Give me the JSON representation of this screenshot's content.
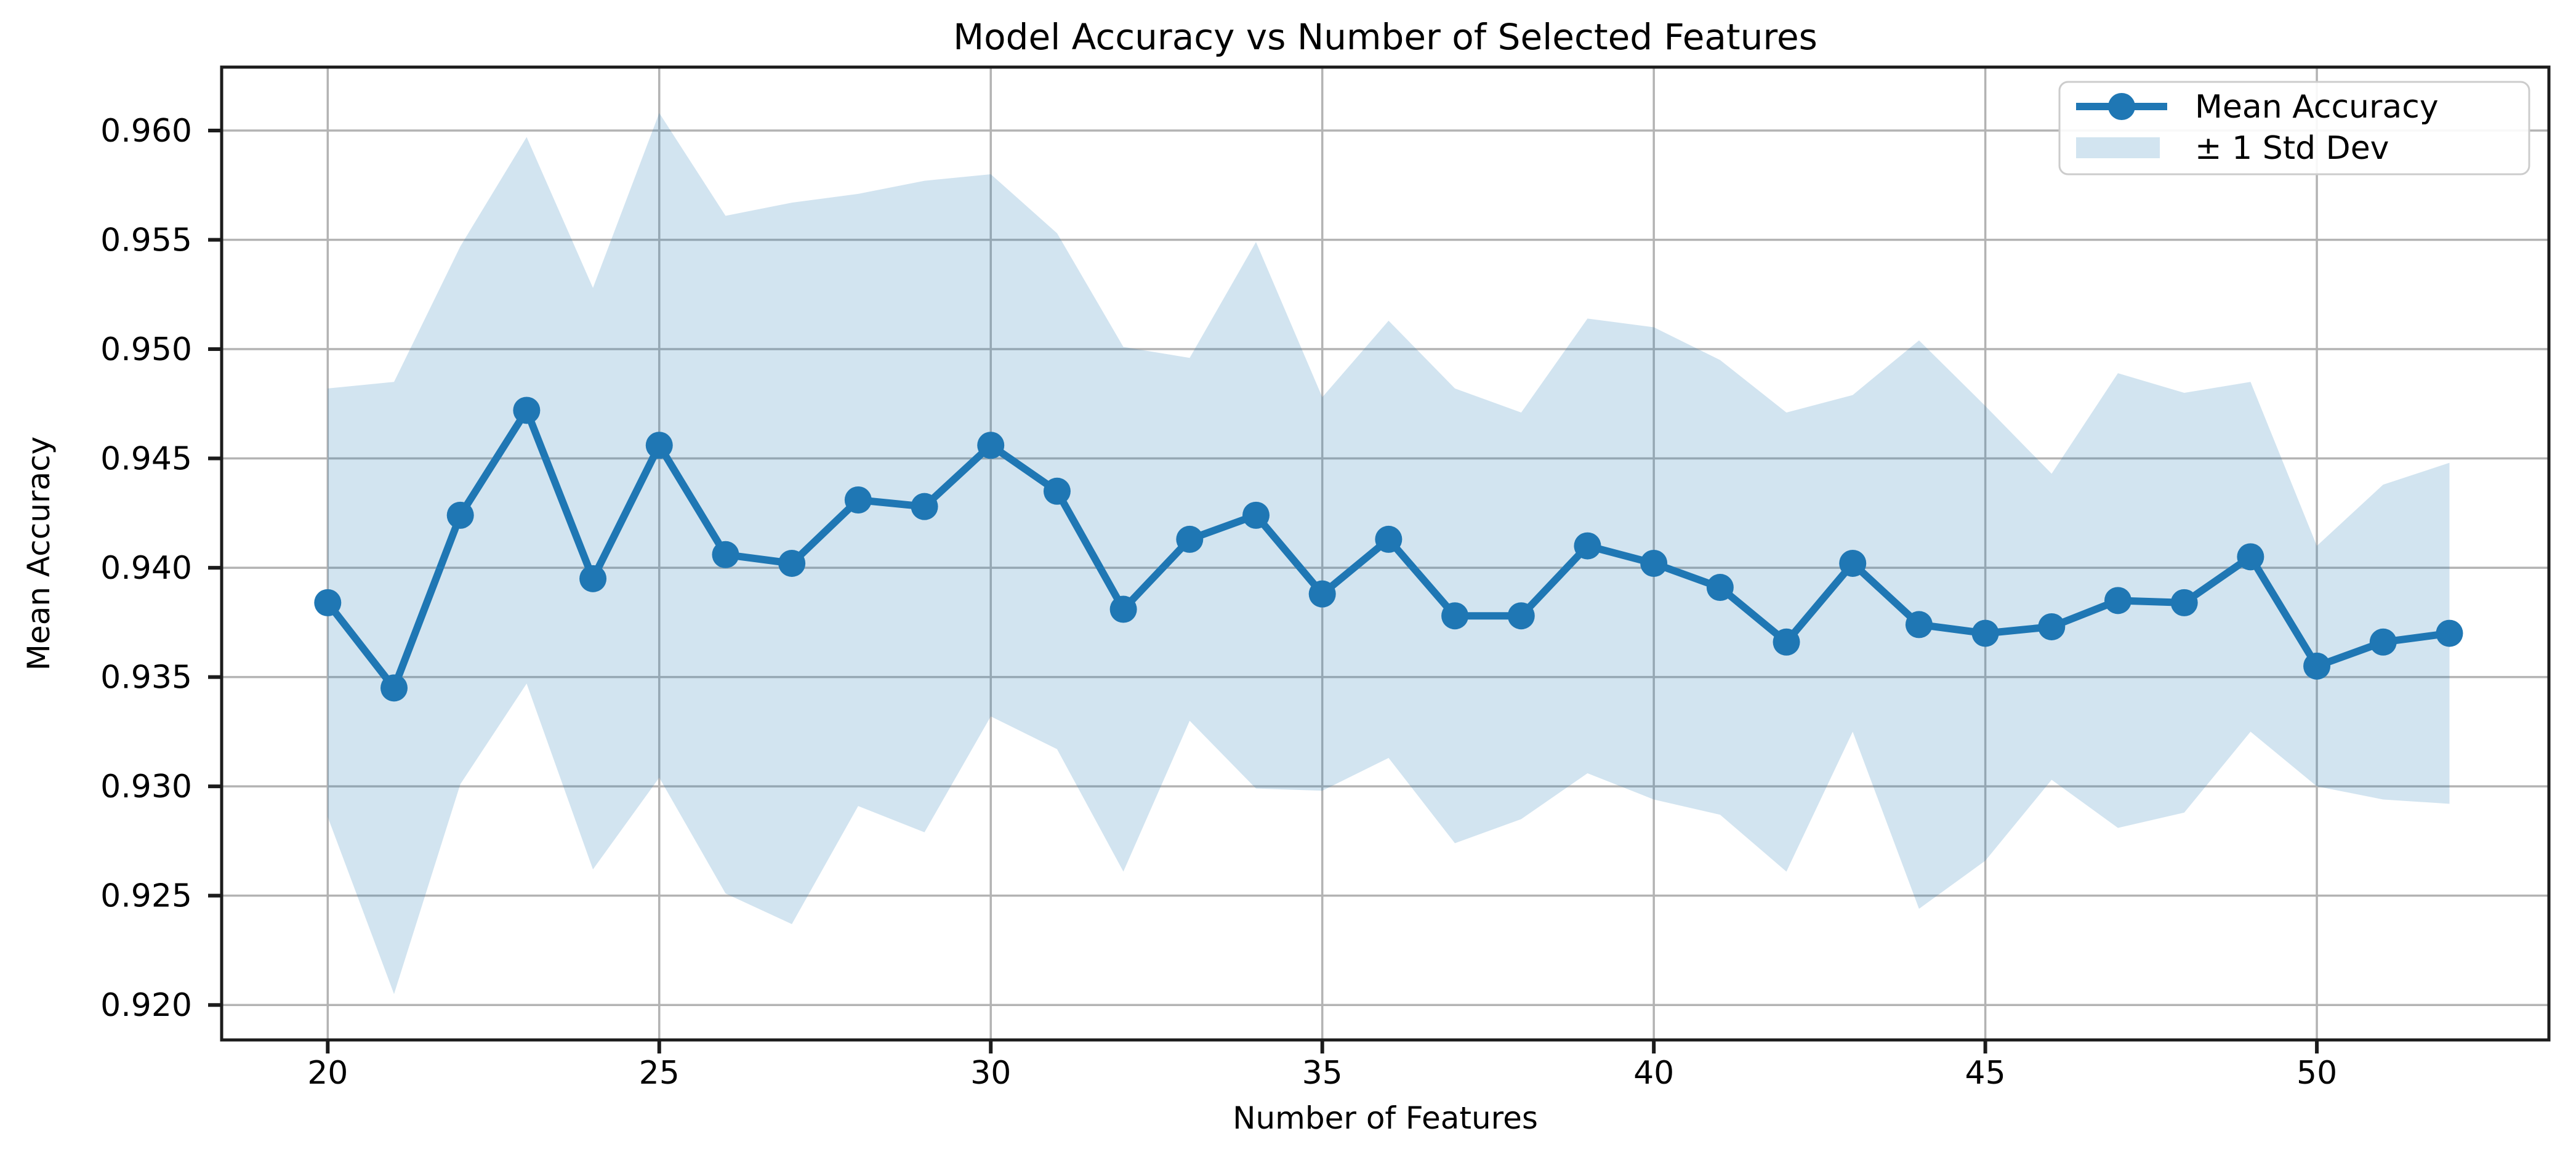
{
  "chart_data": {
    "type": "line",
    "title": "Model Accuracy vs Number of Selected Features",
    "xlabel": "Number of Features",
    "ylabel": "Mean Accuracy",
    "x": [
      20,
      21,
      22,
      23,
      24,
      25,
      26,
      27,
      28,
      29,
      30,
      31,
      32,
      33,
      34,
      35,
      36,
      37,
      38,
      39,
      40,
      41,
      42,
      43,
      44,
      45,
      46,
      47,
      48,
      49,
      50,
      51,
      52
    ],
    "series": [
      {
        "name": "Mean Accuracy",
        "style": "line-with-circle-markers",
        "values": [
          0.9384,
          0.9345,
          0.9424,
          0.9472,
          0.9395,
          0.9456,
          0.9406,
          0.9402,
          0.9431,
          0.9428,
          0.9456,
          0.9435,
          0.9381,
          0.9413,
          0.9424,
          0.9388,
          0.9413,
          0.9378,
          0.9378,
          0.941,
          0.9402,
          0.9391,
          0.9366,
          0.9402,
          0.9374,
          0.937,
          0.9373,
          0.9385,
          0.9384,
          0.9405,
          0.9355,
          0.9366,
          0.937
        ]
      },
      {
        "name": "± 1 Std Dev",
        "style": "filled-band",
        "std": [
          0.0098,
          0.014,
          0.0123,
          0.0125,
          0.0133,
          0.0152,
          0.0155,
          0.0165,
          0.014,
          0.0149,
          0.0124,
          0.0118,
          0.012,
          0.0083,
          0.0125,
          0.009,
          0.01,
          0.0104,
          0.0093,
          0.0104,
          0.0108,
          0.0104,
          0.0105,
          0.0077,
          0.013,
          0.0104,
          0.007,
          0.0104,
          0.0096,
          0.008,
          0.0055,
          0.0072,
          0.0078
        ]
      }
    ],
    "legend": {
      "position": "upper right",
      "entries": [
        "Mean Accuracy",
        "± 1 Std Dev"
      ]
    },
    "xticks": [
      "20",
      "25",
      "30",
      "35",
      "40",
      "45",
      "50"
    ],
    "yticks": [
      "0.920",
      "0.925",
      "0.930",
      "0.935",
      "0.940",
      "0.945",
      "0.950",
      "0.955",
      "0.960"
    ],
    "xlim": [
      18.4,
      53.5
    ],
    "ylim": [
      0.9184,
      0.9629
    ],
    "grid": true,
    "colors": {
      "line": "#1f77b4",
      "marker": "#1f77b4",
      "band_fill": "#1f77b4",
      "band_opacity": 0.2,
      "grid": "#b3b3b3",
      "spine": "#1c1c1c",
      "tick": "#1c1c1c",
      "text": "#000000",
      "legend_border": "#cccccc",
      "legend_bg": "#ffffff"
    }
  }
}
